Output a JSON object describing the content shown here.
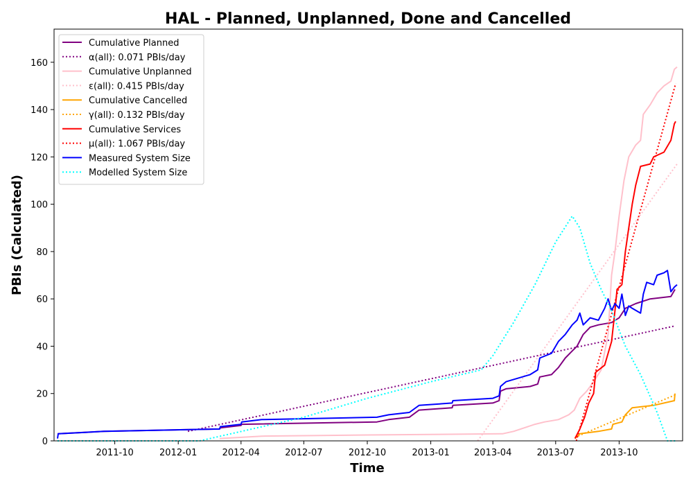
{
  "chart_data": {
    "type": "line",
    "title": "HAL - Planned, Unplanned, Done  and Cancelled",
    "xlabel": "Time",
    "ylabel": "PBIs (Calculated)",
    "xlim": [
      "2011-07-05",
      "2014-01-01"
    ],
    "ylim": [
      0,
      174
    ],
    "x_ticks": [
      "2011-10",
      "2012-01",
      "2012-04",
      "2012-07",
      "2012-10",
      "2013-01",
      "2013-04",
      "2013-07",
      "2013-10"
    ],
    "y_ticks": [
      0,
      20,
      40,
      60,
      80,
      100,
      120,
      140,
      160
    ],
    "grid": false,
    "legend_position": "top-left",
    "series": [
      {
        "name": "Cumulative Planned",
        "color": "#800080",
        "style": "solid",
        "points": [
          [
            "2011-07-10",
            3
          ],
          [
            "2011-09-15",
            4
          ],
          [
            "2012-03-01",
            5
          ],
          [
            "2012-03-02",
            5.5
          ],
          [
            "2012-04-01",
            6.5
          ],
          [
            "2012-04-02",
            7
          ],
          [
            "2012-10-15",
            8
          ],
          [
            "2012-11-01",
            9
          ],
          [
            "2012-12-01",
            10
          ],
          [
            "2012-12-15",
            13
          ],
          [
            "2013-02-01",
            14
          ],
          [
            "2013-02-02",
            15
          ],
          [
            "2013-04-01",
            16
          ],
          [
            "2013-04-10",
            17
          ],
          [
            "2013-04-12",
            21
          ],
          [
            "2013-04-20",
            22
          ],
          [
            "2013-05-25",
            23
          ],
          [
            "2013-06-05",
            24
          ],
          [
            "2013-06-08",
            27
          ],
          [
            "2013-06-25",
            28
          ],
          [
            "2013-07-05",
            31
          ],
          [
            "2013-07-15",
            35
          ],
          [
            "2013-07-25",
            38
          ],
          [
            "2013-08-01",
            40
          ],
          [
            "2013-08-10",
            45
          ],
          [
            "2013-08-20",
            48
          ],
          [
            "2013-09-01",
            49
          ],
          [
            "2013-09-20",
            50
          ],
          [
            "2013-10-01",
            52
          ],
          [
            "2013-10-10",
            56
          ],
          [
            "2013-10-25",
            58
          ],
          [
            "2013-11-15",
            60
          ],
          [
            "2013-12-15",
            61
          ],
          [
            "2013-12-21",
            64
          ]
        ]
      },
      {
        "name": "α(all): 0.071 PBIs/day",
        "color": "#800080",
        "style": "dotted",
        "points": [
          [
            "2012-01-15",
            4
          ],
          [
            "2013-12-20",
            48.5
          ]
        ]
      },
      {
        "name": "Cumulative Unplanned",
        "color": "#ffc0cb",
        "style": "solid",
        "points": [
          [
            "2012-03-01",
            1
          ],
          [
            "2012-05-01",
            2
          ],
          [
            "2012-10-01",
            2.5
          ],
          [
            "2013-04-15",
            3
          ],
          [
            "2013-05-01",
            4
          ],
          [
            "2013-06-01",
            7
          ],
          [
            "2013-06-15",
            8
          ],
          [
            "2013-07-05",
            9
          ],
          [
            "2013-07-20",
            11
          ],
          [
            "2013-07-28",
            13
          ],
          [
            "2013-08-05",
            18
          ],
          [
            "2013-08-15",
            21
          ],
          [
            "2013-08-25",
            25
          ],
          [
            "2013-09-05",
            30
          ],
          [
            "2013-09-15",
            45
          ],
          [
            "2013-09-20",
            70
          ],
          [
            "2013-09-25",
            80
          ],
          [
            "2013-10-01",
            95
          ],
          [
            "2013-10-08",
            110
          ],
          [
            "2013-10-15",
            120
          ],
          [
            "2013-10-25",
            125
          ],
          [
            "2013-11-01",
            127
          ],
          [
            "2013-11-05",
            138
          ],
          [
            "2013-11-15",
            142
          ],
          [
            "2013-11-25",
            147
          ],
          [
            "2013-12-05",
            150
          ],
          [
            "2013-12-15",
            152
          ],
          [
            "2013-12-20",
            157
          ],
          [
            "2013-12-24",
            158
          ]
        ]
      },
      {
        "name": "ε(all): 0.415 PBIs/day",
        "color": "#ffc0cb",
        "style": "dotted",
        "points": [
          [
            "2013-03-10",
            0
          ],
          [
            "2013-12-24",
            117
          ]
        ]
      },
      {
        "name": "Cumulative Cancelled",
        "color": "#ffa500",
        "style": "solid",
        "points": [
          [
            "2013-07-29",
            1
          ],
          [
            "2013-08-05",
            3
          ],
          [
            "2013-09-01",
            4
          ],
          [
            "2013-09-20",
            5
          ],
          [
            "2013-09-22",
            7
          ],
          [
            "2013-10-05",
            8
          ],
          [
            "2013-10-10",
            11
          ],
          [
            "2013-10-20",
            14
          ],
          [
            "2013-11-20",
            15
          ],
          [
            "2013-12-20",
            17
          ],
          [
            "2013-12-21",
            20
          ]
        ]
      },
      {
        "name": "γ(all): 0.132 PBIs/day",
        "color": "#ffa500",
        "style": "dotted",
        "points": [
          [
            "2013-07-29",
            1.5
          ],
          [
            "2013-12-22",
            19.5
          ]
        ]
      },
      {
        "name": "Cumulative Services",
        "color": "#ff0000",
        "style": "solid",
        "points": [
          [
            "2013-07-29",
            1
          ],
          [
            "2013-08-05",
            5
          ],
          [
            "2013-08-12",
            10
          ],
          [
            "2013-08-18",
            16
          ],
          [
            "2013-08-25",
            20
          ],
          [
            "2013-08-28",
            29
          ],
          [
            "2013-09-10",
            32
          ],
          [
            "2013-09-20",
            42
          ],
          [
            "2013-09-25",
            55
          ],
          [
            "2013-09-28",
            64
          ],
          [
            "2013-10-05",
            66
          ],
          [
            "2013-10-10",
            80
          ],
          [
            "2013-10-15",
            90
          ],
          [
            "2013-10-20",
            100
          ],
          [
            "2013-10-25",
            108
          ],
          [
            "2013-11-01",
            116
          ],
          [
            "2013-11-15",
            117
          ],
          [
            "2013-11-20",
            120
          ],
          [
            "2013-12-05",
            122
          ],
          [
            "2013-12-15",
            127
          ],
          [
            "2013-12-20",
            134
          ],
          [
            "2013-12-22",
            135
          ]
        ]
      },
      {
        "name": "μ(all): 1.067 PBIs/day",
        "color": "#ff0000",
        "style": "dotted",
        "points": [
          [
            "2013-07-31",
            0
          ],
          [
            "2013-12-22",
            151
          ]
        ]
      },
      {
        "name": "Measured System Size",
        "color": "#0000ff",
        "style": "solid",
        "points": [
          [
            "2011-07-10",
            1
          ],
          [
            "2011-07-11",
            3
          ],
          [
            "2011-09-15",
            4
          ],
          [
            "2012-03-01",
            5
          ],
          [
            "2012-03-02",
            6
          ],
          [
            "2012-04-01",
            7
          ],
          [
            "2012-04-02",
            8
          ],
          [
            "2012-05-01",
            9
          ],
          [
            "2012-10-15",
            10
          ],
          [
            "2012-11-01",
            11
          ],
          [
            "2012-12-01",
            12
          ],
          [
            "2012-12-15",
            15
          ],
          [
            "2013-02-01",
            16
          ],
          [
            "2013-02-02",
            17
          ],
          [
            "2013-04-01",
            18
          ],
          [
            "2013-04-10",
            19
          ],
          [
            "2013-04-12",
            23
          ],
          [
            "2013-04-20",
            25
          ],
          [
            "2013-05-25",
            28
          ],
          [
            "2013-06-05",
            30
          ],
          [
            "2013-06-08",
            35
          ],
          [
            "2013-06-25",
            37
          ],
          [
            "2013-07-05",
            42
          ],
          [
            "2013-07-15",
            45
          ],
          [
            "2013-07-25",
            49
          ],
          [
            "2013-08-01",
            51
          ],
          [
            "2013-08-05",
            54
          ],
          [
            "2013-08-10",
            49
          ],
          [
            "2013-08-20",
            52
          ],
          [
            "2013-09-01",
            51
          ],
          [
            "2013-09-10",
            56
          ],
          [
            "2013-09-15",
            60
          ],
          [
            "2013-09-20",
            55
          ],
          [
            "2013-09-25",
            58
          ],
          [
            "2013-10-01",
            56
          ],
          [
            "2013-10-05",
            62
          ],
          [
            "2013-10-10",
            53
          ],
          [
            "2013-10-15",
            57
          ],
          [
            "2013-10-20",
            56
          ],
          [
            "2013-11-01",
            54
          ],
          [
            "2013-11-05",
            62
          ],
          [
            "2013-11-10",
            67
          ],
          [
            "2013-11-20",
            66
          ],
          [
            "2013-11-25",
            70
          ],
          [
            "2013-12-05",
            71
          ],
          [
            "2013-12-10",
            72
          ],
          [
            "2013-12-15",
            63
          ],
          [
            "2013-12-20",
            65
          ],
          [
            "2013-12-24",
            66
          ]
        ]
      },
      {
        "name": "Modelled System Size",
        "color": "#00ffff",
        "style": "dotted",
        "points": [
          [
            "2011-07-10",
            0
          ],
          [
            "2012-02-01",
            0
          ],
          [
            "2012-07-01",
            10
          ],
          [
            "2012-10-01",
            18
          ],
          [
            "2013-01-01",
            25
          ],
          [
            "2013-03-15",
            30
          ],
          [
            "2013-04-01",
            36
          ],
          [
            "2013-05-01",
            50
          ],
          [
            "2013-06-01",
            66
          ],
          [
            "2013-07-01",
            84
          ],
          [
            "2013-07-25",
            95
          ],
          [
            "2013-08-05",
            90
          ],
          [
            "2013-08-20",
            75
          ],
          [
            "2013-09-05",
            64
          ],
          [
            "2013-09-20",
            55
          ],
          [
            "2013-10-10",
            40
          ],
          [
            "2013-11-01",
            28
          ],
          [
            "2013-11-25",
            12
          ],
          [
            "2013-12-10",
            0
          ],
          [
            "2013-12-24",
            0
          ]
        ]
      }
    ]
  }
}
